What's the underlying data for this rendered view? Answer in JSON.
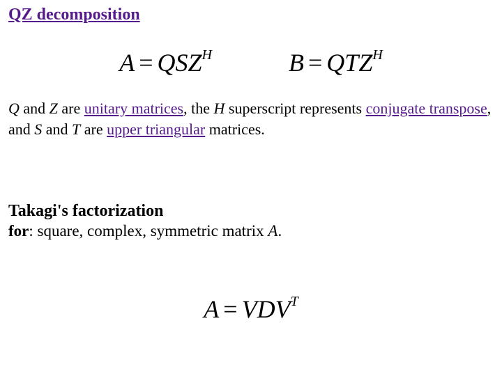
{
  "colors": {
    "background": "#ffffff",
    "text": "#000000",
    "link_visited": "#551a8b"
  },
  "typography": {
    "body_family": "Times New Roman",
    "heading_size_pt": 18,
    "body_size_pt": 16,
    "equation_size_pt": 27
  },
  "heading": {
    "text": "QZ decomposition"
  },
  "equations_top": {
    "left": {
      "lhs": "A",
      "rhs_base": "QSZ",
      "rhs_sup": "H"
    },
    "right": {
      "lhs": "B",
      "rhs_base": "QTZ",
      "rhs_sup": "H"
    }
  },
  "paragraph": {
    "p1": "Q",
    "p2": " and ",
    "p3": "Z",
    "p4": " are ",
    "link1": "unitary matrices",
    "p5": ", the ",
    "p6": "H",
    "p7": " superscript represents ",
    "link2": "conjugate transpose",
    "p8": ", and ",
    "p9": "S",
    "p10": " and ",
    "p11": "T",
    "p12": " are ",
    "link3": "upper triangular",
    "p13": " matrices."
  },
  "section2": {
    "title": "Takagi's factorization",
    "for_label": "for",
    "for_rest": ": square, complex, symmetric matrix ",
    "for_var": "A",
    "for_period": "."
  },
  "equation_bottom": {
    "lhs": "A",
    "rhs_base": "VDV",
    "rhs_sup": "T"
  }
}
